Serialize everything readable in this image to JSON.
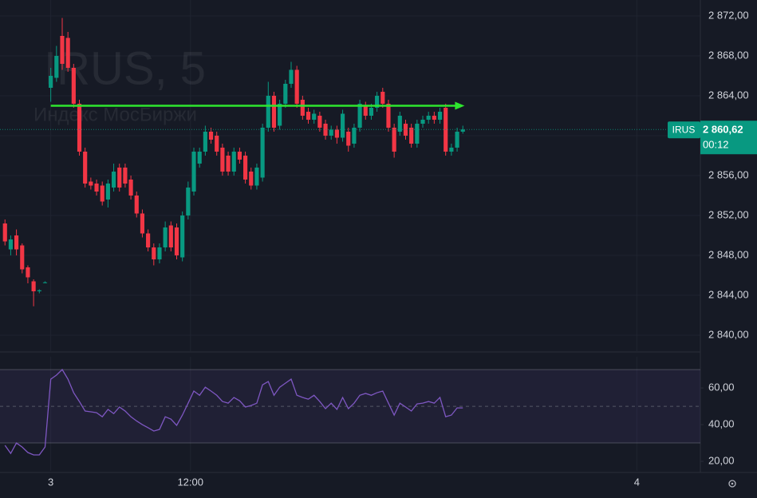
{
  "chart_data": [
    {
      "type": "candlestick",
      "title": "IRUS, 5",
      "subtitle": "Индекс МосБиржи",
      "up_color": "#089981",
      "down_color": "#f23645",
      "x": [
        0,
        1,
        2,
        3,
        4,
        5,
        6,
        7,
        8,
        9,
        10,
        11,
        12,
        13,
        14,
        15,
        16,
        17,
        18,
        19,
        20,
        21,
        22,
        23,
        24,
        25,
        26,
        27,
        28,
        29,
        30,
        31,
        32,
        33,
        34,
        35,
        36,
        37,
        38,
        39,
        40,
        41,
        42,
        43,
        44,
        45,
        46,
        47,
        48,
        49,
        50,
        51,
        52,
        53,
        54,
        55,
        56,
        57,
        58,
        59,
        60,
        61,
        62,
        63,
        64,
        65,
        66,
        67,
        68,
        69,
        70,
        71,
        72,
        73,
        74,
        75,
        76,
        77,
        78,
        79,
        80
      ],
      "open": [
        2851.2,
        2848.6,
        2850.0,
        2849.0,
        2846.8,
        2845.4,
        2844.4,
        2845.3,
        2864.8,
        2865.8,
        2870.0,
        2869.8,
        2866.8,
        2863.2,
        2858.4,
        2855.4,
        2855.2,
        2855.0,
        2853.6,
        2854.8,
        2856.8,
        2856.8,
        2855.6,
        2854.0,
        2852.2,
        2850.2,
        2848.8,
        2847.6,
        2848.8,
        2851.0,
        2850.8,
        2847.8,
        2852.0,
        2854.4,
        2857.2,
        2858.4,
        2860.4,
        2860.0,
        2858.8,
        2858.0,
        2856.4,
        2858.4,
        2858.0,
        2856.4,
        2855.0,
        2855.8,
        2860.8,
        2864.0,
        2861.0,
        2863.2,
        2865.2,
        2866.6,
        2863.6,
        2862.4,
        2861.6,
        2862.0,
        2861.2,
        2860.0,
        2860.6,
        2859.8,
        2860.4,
        2859.2,
        2860.8,
        2863.0,
        2862.0,
        2862.8,
        2864.4,
        2863.2,
        2860.8,
        2860.4,
        2861.2,
        2860.8,
        2859.2,
        2861.2,
        2861.6,
        2862.0,
        2861.6,
        2862.8,
        2858.4,
        2858.8,
        2860.4
      ],
      "high": [
        2851.6,
        2850.0,
        2850.6,
        2849.2,
        2847.0,
        2845.6,
        2844.6,
        2845.4,
        2866.8,
        2869.0,
        2871.8,
        2870.4,
        2867.2,
        2863.6,
        2858.8,
        2855.8,
        2855.6,
        2855.4,
        2855.6,
        2857.2,
        2857.2,
        2857.2,
        2856.0,
        2854.4,
        2852.6,
        2850.6,
        2849.2,
        2849.2,
        2851.4,
        2851.4,
        2851.2,
        2852.4,
        2855.4,
        2858.8,
        2858.8,
        2861.0,
        2860.8,
        2860.4,
        2859.2,
        2858.4,
        2858.8,
        2858.8,
        2858.4,
        2856.8,
        2857.2,
        2861.2,
        2865.4,
        2864.4,
        2863.6,
        2865.6,
        2867.4,
        2867.0,
        2864.0,
        2862.8,
        2862.6,
        2862.4,
        2861.6,
        2861.0,
        2861.0,
        2862.6,
        2860.8,
        2861.2,
        2863.6,
        2863.4,
        2863.2,
        2864.4,
        2864.8,
        2863.6,
        2861.2,
        2862.4,
        2861.6,
        2861.2,
        2861.6,
        2862.0,
        2862.4,
        2862.4,
        2862.8,
        2863.2,
        2859.2,
        2860.8,
        2861.0
      ],
      "low": [
        2849.0,
        2848.0,
        2848.0,
        2846.2,
        2845.2,
        2842.9,
        2844.2,
        2845.2,
        2863.4,
        2865.4,
        2866.6,
        2866.4,
        2862.8,
        2858.0,
        2854.8,
        2854.6,
        2854.0,
        2853.0,
        2852.8,
        2854.4,
        2854.4,
        2854.8,
        2853.6,
        2851.8,
        2849.8,
        2848.4,
        2847.0,
        2847.2,
        2848.4,
        2848.4,
        2847.6,
        2847.4,
        2851.6,
        2854.0,
        2856.8,
        2858.0,
        2859.2,
        2858.0,
        2856.0,
        2856.0,
        2856.0,
        2857.2,
        2855.2,
        2854.6,
        2854.6,
        2855.4,
        2860.4,
        2860.4,
        2860.6,
        2862.8,
        2864.8,
        2862.8,
        2861.6,
        2861.2,
        2861.2,
        2860.4,
        2859.6,
        2859.6,
        2859.2,
        2859.4,
        2858.4,
        2858.8,
        2860.4,
        2861.6,
        2861.6,
        2862.4,
        2862.8,
        2860.4,
        2857.8,
        2860.0,
        2859.6,
        2858.8,
        2858.8,
        2860.8,
        2861.2,
        2861.2,
        2861.2,
        2858.0,
        2858.0,
        2858.4,
        2860.2
      ],
      "close": [
        2849.4,
        2849.6,
        2848.6,
        2846.6,
        2845.8,
        2844.4,
        2844.5,
        2845.3,
        2866.0,
        2868.0,
        2867.2,
        2866.8,
        2863.2,
        2858.4,
        2855.2,
        2855.0,
        2854.4,
        2853.4,
        2855.2,
        2856.4,
        2854.8,
        2855.2,
        2854.0,
        2852.2,
        2850.2,
        2848.8,
        2847.6,
        2848.8,
        2850.8,
        2848.8,
        2848.0,
        2852.0,
        2854.8,
        2858.4,
        2858.4,
        2860.4,
        2859.6,
        2858.4,
        2856.4,
        2856.4,
        2858.4,
        2857.6,
        2855.6,
        2855.0,
        2856.8,
        2860.8,
        2864.0,
        2860.8,
        2863.2,
        2865.2,
        2866.6,
        2863.2,
        2862.0,
        2861.6,
        2862.2,
        2860.8,
        2860.0,
        2860.6,
        2859.8,
        2862.2,
        2859.0,
        2860.8,
        2863.2,
        2862.0,
        2862.8,
        2864.0,
        2863.2,
        2860.8,
        2858.4,
        2862.0,
        2860.0,
        2859.2,
        2861.2,
        2861.6,
        2862.0,
        2861.6,
        2862.4,
        2858.4,
        2858.8,
        2860.4,
        2860.62
      ],
      "xlim": [
        -0.87,
        121.5
      ],
      "xticks": [
        {
          "value": 8,
          "label": "3"
        },
        {
          "value": 32.4,
          "label": "12:00"
        },
        {
          "value": 110.4,
          "label": "4"
        }
      ],
      "ylim": [
        2838.4,
        2873.6
      ],
      "yticks": [
        {
          "value": 2840,
          "label": "2 840,00"
        },
        {
          "value": 2844,
          "label": "2 844,00"
        },
        {
          "value": 2848,
          "label": "2 848,00"
        },
        {
          "value": 2852,
          "label": "2 852,00"
        },
        {
          "value": 2856,
          "label": "2 856,00"
        },
        {
          "value": 2860,
          "label": "2 860,00"
        },
        {
          "value": 2864,
          "label": "2 864,00"
        },
        {
          "value": 2868,
          "label": "2 868,00"
        },
        {
          "value": 2872,
          "label": "2 872,00"
        }
      ],
      "grid": true,
      "price_tag": {
        "symbol": "IRUS",
        "value": 2860.62,
        "label": "2 860,62",
        "timer": "00:12"
      },
      "arrow": {
        "from": 8,
        "to": 80.3,
        "value": 2863.0,
        "color": "#2ee62e"
      }
    },
    {
      "type": "line",
      "color": "#7e57c2",
      "values": [
        28.7,
        24.3,
        30.0,
        27.8,
        24.8,
        23.5,
        23.5,
        27.8,
        64.8,
        67.0,
        70.0,
        64.8,
        57.4,
        52.6,
        47.4,
        47.0,
        46.5,
        44.3,
        48.3,
        46.0,
        49.6,
        47.4,
        44.3,
        42.0,
        40.0,
        38.3,
        36.5,
        37.4,
        44.3,
        43.0,
        39.6,
        45.2,
        51.7,
        58.3,
        56.0,
        60.4,
        58.3,
        56.0,
        52.6,
        51.7,
        54.8,
        53.0,
        49.6,
        50.4,
        51.7,
        61.7,
        63.5,
        56.0,
        60.4,
        62.6,
        64.8,
        56.0,
        54.8,
        53.9,
        56.0,
        52.6,
        48.7,
        51.7,
        48.3,
        54.8,
        48.7,
        51.7,
        56.0,
        57.0,
        56.0,
        57.4,
        58.3,
        51.7,
        45.2,
        51.7,
        49.6,
        47.4,
        51.3,
        51.7,
        52.6,
        51.7,
        54.8,
        44.3,
        45.2,
        49.1,
        49.1
      ],
      "ylim": [
        14.8,
        77
      ],
      "yticks": [
        {
          "value": 20,
          "label": "20,00"
        },
        {
          "value": 40,
          "label": "40,00"
        },
        {
          "value": 60,
          "label": "60,00"
        }
      ],
      "band": [
        30,
        70
      ],
      "midline": 50
    }
  ]
}
